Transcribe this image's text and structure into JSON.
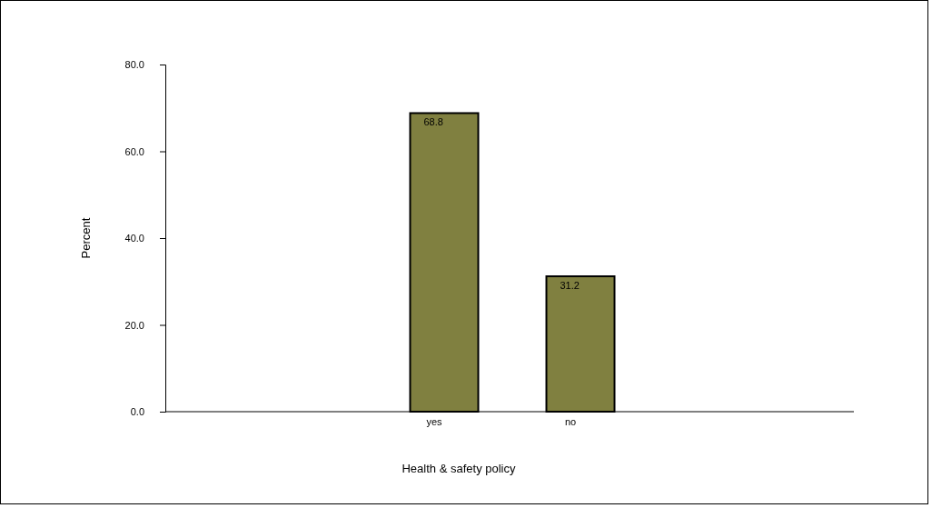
{
  "chart_data": {
    "type": "bar",
    "xlabel": "Health & safety policy",
    "ylabel": "Percent",
    "categories": [
      "yes",
      "no"
    ],
    "values": [
      68.8,
      31.2
    ],
    "color": "#808040",
    "ylim": [
      0,
      80
    ],
    "yticks": [
      {
        "value": 0,
        "label": "0.0"
      },
      {
        "value": 20,
        "label": "20.0"
      },
      {
        "value": 40,
        "label": "40.0"
      },
      {
        "value": 60,
        "label": "60.0"
      },
      {
        "value": 80,
        "label": "80.0"
      }
    ],
    "data_labels": true,
    "grid": false
  }
}
